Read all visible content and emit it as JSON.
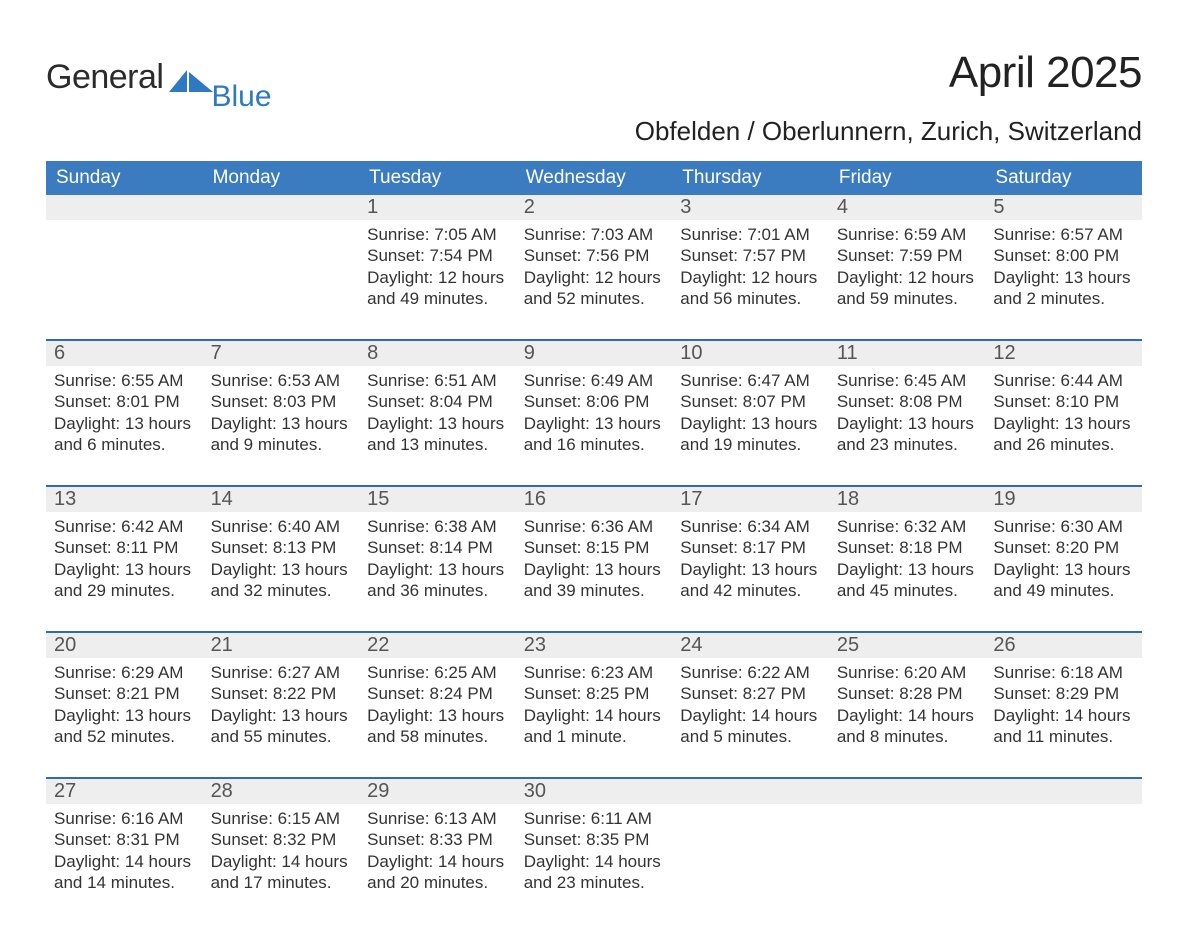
{
  "brand": {
    "word1": "General",
    "word2": "Blue"
  },
  "title": "April 2025",
  "location": "Obfelden / Oberlunnern, Zurich, Switzerland",
  "colors": {
    "header_blue": "#3b7bbf",
    "divider_blue": "#2e6bb0",
    "daynum_bg": "#eeeeee",
    "brand_blue": "#2f78c2"
  },
  "days_of_week": [
    "Sunday",
    "Monday",
    "Tuesday",
    "Wednesday",
    "Thursday",
    "Friday",
    "Saturday"
  ],
  "weeks": [
    [
      {
        "n": "",
        "sunrise": "",
        "sunset": "",
        "daylight": ""
      },
      {
        "n": "",
        "sunrise": "",
        "sunset": "",
        "daylight": ""
      },
      {
        "n": "1",
        "sunrise": "Sunrise: 7:05 AM",
        "sunset": "Sunset: 7:54 PM",
        "daylight": "Daylight: 12 hours and 49 minutes."
      },
      {
        "n": "2",
        "sunrise": "Sunrise: 7:03 AM",
        "sunset": "Sunset: 7:56 PM",
        "daylight": "Daylight: 12 hours and 52 minutes."
      },
      {
        "n": "3",
        "sunrise": "Sunrise: 7:01 AM",
        "sunset": "Sunset: 7:57 PM",
        "daylight": "Daylight: 12 hours and 56 minutes."
      },
      {
        "n": "4",
        "sunrise": "Sunrise: 6:59 AM",
        "sunset": "Sunset: 7:59 PM",
        "daylight": "Daylight: 12 hours and 59 minutes."
      },
      {
        "n": "5",
        "sunrise": "Sunrise: 6:57 AM",
        "sunset": "Sunset: 8:00 PM",
        "daylight": "Daylight: 13 hours and 2 minutes."
      }
    ],
    [
      {
        "n": "6",
        "sunrise": "Sunrise: 6:55 AM",
        "sunset": "Sunset: 8:01 PM",
        "daylight": "Daylight: 13 hours and 6 minutes."
      },
      {
        "n": "7",
        "sunrise": "Sunrise: 6:53 AM",
        "sunset": "Sunset: 8:03 PM",
        "daylight": "Daylight: 13 hours and 9 minutes."
      },
      {
        "n": "8",
        "sunrise": "Sunrise: 6:51 AM",
        "sunset": "Sunset: 8:04 PM",
        "daylight": "Daylight: 13 hours and 13 minutes."
      },
      {
        "n": "9",
        "sunrise": "Sunrise: 6:49 AM",
        "sunset": "Sunset: 8:06 PM",
        "daylight": "Daylight: 13 hours and 16 minutes."
      },
      {
        "n": "10",
        "sunrise": "Sunrise: 6:47 AM",
        "sunset": "Sunset: 8:07 PM",
        "daylight": "Daylight: 13 hours and 19 minutes."
      },
      {
        "n": "11",
        "sunrise": "Sunrise: 6:45 AM",
        "sunset": "Sunset: 8:08 PM",
        "daylight": "Daylight: 13 hours and 23 minutes."
      },
      {
        "n": "12",
        "sunrise": "Sunrise: 6:44 AM",
        "sunset": "Sunset: 8:10 PM",
        "daylight": "Daylight: 13 hours and 26 minutes."
      }
    ],
    [
      {
        "n": "13",
        "sunrise": "Sunrise: 6:42 AM",
        "sunset": "Sunset: 8:11 PM",
        "daylight": "Daylight: 13 hours and 29 minutes."
      },
      {
        "n": "14",
        "sunrise": "Sunrise: 6:40 AM",
        "sunset": "Sunset: 8:13 PM",
        "daylight": "Daylight: 13 hours and 32 minutes."
      },
      {
        "n": "15",
        "sunrise": "Sunrise: 6:38 AM",
        "sunset": "Sunset: 8:14 PM",
        "daylight": "Daylight: 13 hours and 36 minutes."
      },
      {
        "n": "16",
        "sunrise": "Sunrise: 6:36 AM",
        "sunset": "Sunset: 8:15 PM",
        "daylight": "Daylight: 13 hours and 39 minutes."
      },
      {
        "n": "17",
        "sunrise": "Sunrise: 6:34 AM",
        "sunset": "Sunset: 8:17 PM",
        "daylight": "Daylight: 13 hours and 42 minutes."
      },
      {
        "n": "18",
        "sunrise": "Sunrise: 6:32 AM",
        "sunset": "Sunset: 8:18 PM",
        "daylight": "Daylight: 13 hours and 45 minutes."
      },
      {
        "n": "19",
        "sunrise": "Sunrise: 6:30 AM",
        "sunset": "Sunset: 8:20 PM",
        "daylight": "Daylight: 13 hours and 49 minutes."
      }
    ],
    [
      {
        "n": "20",
        "sunrise": "Sunrise: 6:29 AM",
        "sunset": "Sunset: 8:21 PM",
        "daylight": "Daylight: 13 hours and 52 minutes."
      },
      {
        "n": "21",
        "sunrise": "Sunrise: 6:27 AM",
        "sunset": "Sunset: 8:22 PM",
        "daylight": "Daylight: 13 hours and 55 minutes."
      },
      {
        "n": "22",
        "sunrise": "Sunrise: 6:25 AM",
        "sunset": "Sunset: 8:24 PM",
        "daylight": "Daylight: 13 hours and 58 minutes."
      },
      {
        "n": "23",
        "sunrise": "Sunrise: 6:23 AM",
        "sunset": "Sunset: 8:25 PM",
        "daylight": "Daylight: 14 hours and 1 minute."
      },
      {
        "n": "24",
        "sunrise": "Sunrise: 6:22 AM",
        "sunset": "Sunset: 8:27 PM",
        "daylight": "Daylight: 14 hours and 5 minutes."
      },
      {
        "n": "25",
        "sunrise": "Sunrise: 6:20 AM",
        "sunset": "Sunset: 8:28 PM",
        "daylight": "Daylight: 14 hours and 8 minutes."
      },
      {
        "n": "26",
        "sunrise": "Sunrise: 6:18 AM",
        "sunset": "Sunset: 8:29 PM",
        "daylight": "Daylight: 14 hours and 11 minutes."
      }
    ],
    [
      {
        "n": "27",
        "sunrise": "Sunrise: 6:16 AM",
        "sunset": "Sunset: 8:31 PM",
        "daylight": "Daylight: 14 hours and 14 minutes."
      },
      {
        "n": "28",
        "sunrise": "Sunrise: 6:15 AM",
        "sunset": "Sunset: 8:32 PM",
        "daylight": "Daylight: 14 hours and 17 minutes."
      },
      {
        "n": "29",
        "sunrise": "Sunrise: 6:13 AM",
        "sunset": "Sunset: 8:33 PM",
        "daylight": "Daylight: 14 hours and 20 minutes."
      },
      {
        "n": "30",
        "sunrise": "Sunrise: 6:11 AM",
        "sunset": "Sunset: 8:35 PM",
        "daylight": "Daylight: 14 hours and 23 minutes."
      },
      {
        "n": "",
        "sunrise": "",
        "sunset": "",
        "daylight": ""
      },
      {
        "n": "",
        "sunrise": "",
        "sunset": "",
        "daylight": ""
      },
      {
        "n": "",
        "sunrise": "",
        "sunset": "",
        "daylight": ""
      }
    ]
  ]
}
